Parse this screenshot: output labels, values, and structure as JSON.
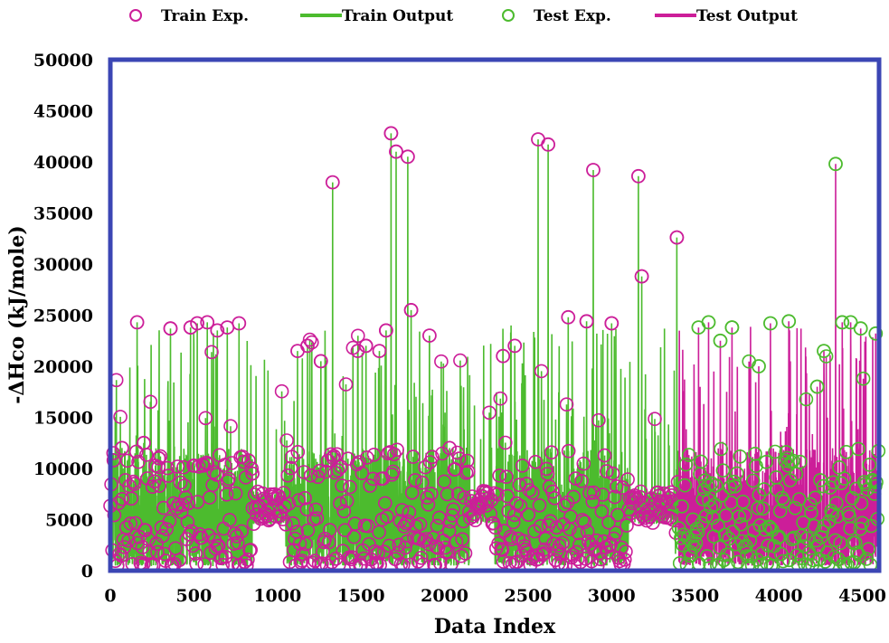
{
  "chart_data": {
    "type": "line",
    "xlabel": "Data Index",
    "ylabel": "-ΔHco (kJ/mole)",
    "xlim": [
      0,
      4600
    ],
    "ylim": [
      0,
      50000
    ],
    "xticks": [
      "0",
      "500",
      "1000",
      "1500",
      "2000",
      "2500",
      "3000",
      "3500",
      "4000",
      "4500"
    ],
    "yticks": [
      "0",
      "5000",
      "10000",
      "15000",
      "20000",
      "25000",
      "30000",
      "35000",
      "40000",
      "45000",
      "50000"
    ],
    "grid": false,
    "legend_position": "top",
    "train_test_split_index": 3400,
    "series": [
      {
        "name": "Train Exp.",
        "marker": "circle",
        "color": "#cc1e99"
      },
      {
        "name": "Train Output",
        "marker": "line",
        "color": "#4cbb2e"
      },
      {
        "name": "Test Exp.",
        "marker": "circle",
        "color": "#4cbb2e"
      },
      {
        "name": "Test Output",
        "marker": "line",
        "color": "#cc1e99"
      }
    ],
    "peaks": [
      {
        "x": 20,
        "y": 10800,
        "set": "train"
      },
      {
        "x": 70,
        "y": 12000,
        "set": "train"
      },
      {
        "x": 160,
        "y": 24300,
        "set": "train"
      },
      {
        "x": 200,
        "y": 12500,
        "set": "train"
      },
      {
        "x": 290,
        "y": 11000,
        "set": "train"
      },
      {
        "x": 360,
        "y": 23700,
        "set": "train"
      },
      {
        "x": 480,
        "y": 23800,
        "set": "train"
      },
      {
        "x": 520,
        "y": 24200,
        "set": "train"
      },
      {
        "x": 580,
        "y": 24300,
        "set": "train"
      },
      {
        "x": 640,
        "y": 23500,
        "set": "train"
      },
      {
        "x": 700,
        "y": 23800,
        "set": "train"
      },
      {
        "x": 770,
        "y": 24200,
        "set": "train"
      },
      {
        "x": 850,
        "y": 9500,
        "set": "train"
      },
      {
        "x": 1120,
        "y": 21500,
        "set": "train"
      },
      {
        "x": 1180,
        "y": 22000,
        "set": "train"
      },
      {
        "x": 1260,
        "y": 20500,
        "set": "train"
      },
      {
        "x": 1330,
        "y": 38000,
        "set": "train"
      },
      {
        "x": 1480,
        "y": 21500,
        "set": "train"
      },
      {
        "x": 1530,
        "y": 22000,
        "set": "train"
      },
      {
        "x": 1610,
        "y": 21500,
        "set": "train"
      },
      {
        "x": 1650,
        "y": 23500,
        "set": "train"
      },
      {
        "x": 1680,
        "y": 42800,
        "set": "train"
      },
      {
        "x": 1710,
        "y": 41000,
        "set": "train"
      },
      {
        "x": 1780,
        "y": 40500,
        "set": "train"
      },
      {
        "x": 1800,
        "y": 25500,
        "set": "train"
      },
      {
        "x": 1910,
        "y": 23000,
        "set": "train"
      },
      {
        "x": 2030,
        "y": 12000,
        "set": "train"
      },
      {
        "x": 2350,
        "y": 21000,
        "set": "train"
      },
      {
        "x": 2420,
        "y": 22000,
        "set": "train"
      },
      {
        "x": 2560,
        "y": 42200,
        "set": "train"
      },
      {
        "x": 2620,
        "y": 41700,
        "set": "train"
      },
      {
        "x": 2740,
        "y": 24800,
        "set": "train"
      },
      {
        "x": 2850,
        "y": 24400,
        "set": "train"
      },
      {
        "x": 2890,
        "y": 39200,
        "set": "train"
      },
      {
        "x": 3000,
        "y": 24200,
        "set": "train"
      },
      {
        "x": 3160,
        "y": 38600,
        "set": "train"
      },
      {
        "x": 3180,
        "y": 28800,
        "set": "train"
      },
      {
        "x": 3390,
        "y": 32600,
        "set": "train"
      },
      {
        "x": 3520,
        "y": 23800,
        "set": "test"
      },
      {
        "x": 3580,
        "y": 24300,
        "set": "test"
      },
      {
        "x": 3650,
        "y": 22500,
        "set": "test"
      },
      {
        "x": 3720,
        "y": 23800,
        "set": "test"
      },
      {
        "x": 3880,
        "y": 20000,
        "set": "test"
      },
      {
        "x": 3950,
        "y": 24200,
        "set": "test"
      },
      {
        "x": 4060,
        "y": 24400,
        "set": "test"
      },
      {
        "x": 4230,
        "y": 18000,
        "set": "test"
      },
      {
        "x": 4270,
        "y": 21500,
        "set": "test"
      },
      {
        "x": 4340,
        "y": 39800,
        "set": "test"
      },
      {
        "x": 4380,
        "y": 24300,
        "set": "test"
      },
      {
        "x": 4430,
        "y": 24300,
        "set": "test"
      },
      {
        "x": 4490,
        "y": 23700,
        "set": "test"
      },
      {
        "x": 4580,
        "y": 23200,
        "set": "test"
      }
    ]
  }
}
